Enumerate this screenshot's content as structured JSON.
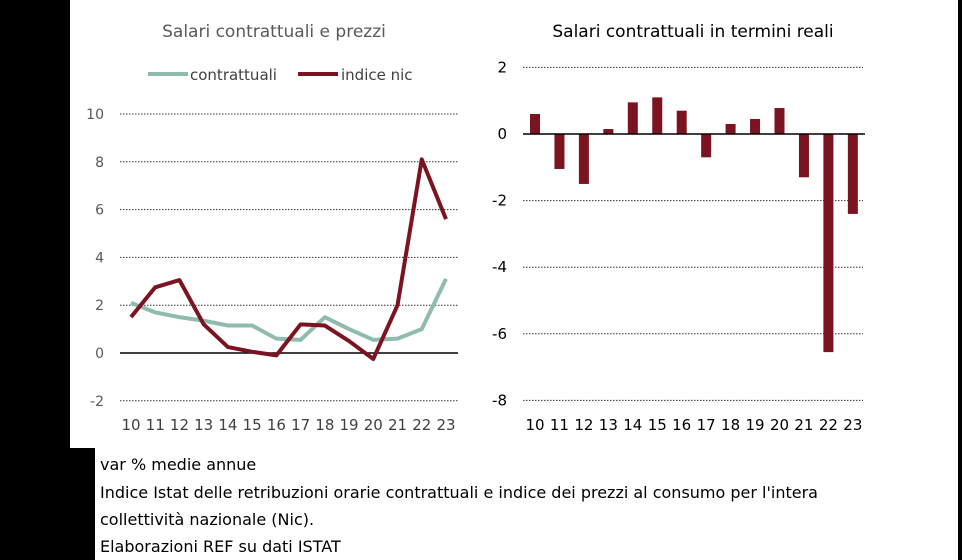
{
  "chart_data": [
    {
      "type": "line",
      "title": "Salari contrattuali e prezzi",
      "categories": [
        "10",
        "11",
        "12",
        "13",
        "14",
        "15",
        "16",
        "17",
        "18",
        "19",
        "20",
        "21",
        "22",
        "23"
      ],
      "ylim": [
        -2,
        10
      ],
      "yticks": [
        "-2",
        "0",
        "2",
        "4",
        "6",
        "8",
        "10"
      ],
      "grid": true,
      "legend": "top",
      "series": [
        {
          "name": "contrattuali",
          "color": "#8fbcae",
          "values": [
            2.1,
            1.7,
            1.5,
            1.35,
            1.15,
            1.15,
            0.6,
            0.55,
            1.5,
            1.0,
            0.55,
            0.6,
            1.0,
            3.1
          ]
        },
        {
          "name": "indice nic",
          "color": "#7b1420",
          "values": [
            1.5,
            2.75,
            3.05,
            1.2,
            0.25,
            0.05,
            -0.1,
            1.2,
            1.15,
            0.5,
            -0.25,
            2.0,
            8.1,
            5.6
          ]
        }
      ]
    },
    {
      "type": "bar",
      "title": "Salari contrattuali in termini reali",
      "categories": [
        "10",
        "11",
        "12",
        "13",
        "14",
        "15",
        "16",
        "17",
        "18",
        "19",
        "20",
        "21",
        "22",
        "23"
      ],
      "ylim": [
        -8,
        2
      ],
      "yticks": [
        "-8",
        "-6",
        "-4",
        "-2",
        "0",
        "2"
      ],
      "grid": true,
      "color": "#7b1420",
      "values": [
        0.6,
        -1.05,
        -1.5,
        0.15,
        0.95,
        1.1,
        0.7,
        -0.7,
        0.3,
        0.45,
        0.78,
        -1.3,
        -6.55,
        -2.4
      ]
    }
  ],
  "notes": [
    "var % medie annue",
    "Indice Istat  delle retribuzioni orarie contrattuali e indice dei prezzi al consumo per l'intera",
    "collettività nazionale (Nic).",
    "Elaborazioni REF su dati ISTAT"
  ]
}
